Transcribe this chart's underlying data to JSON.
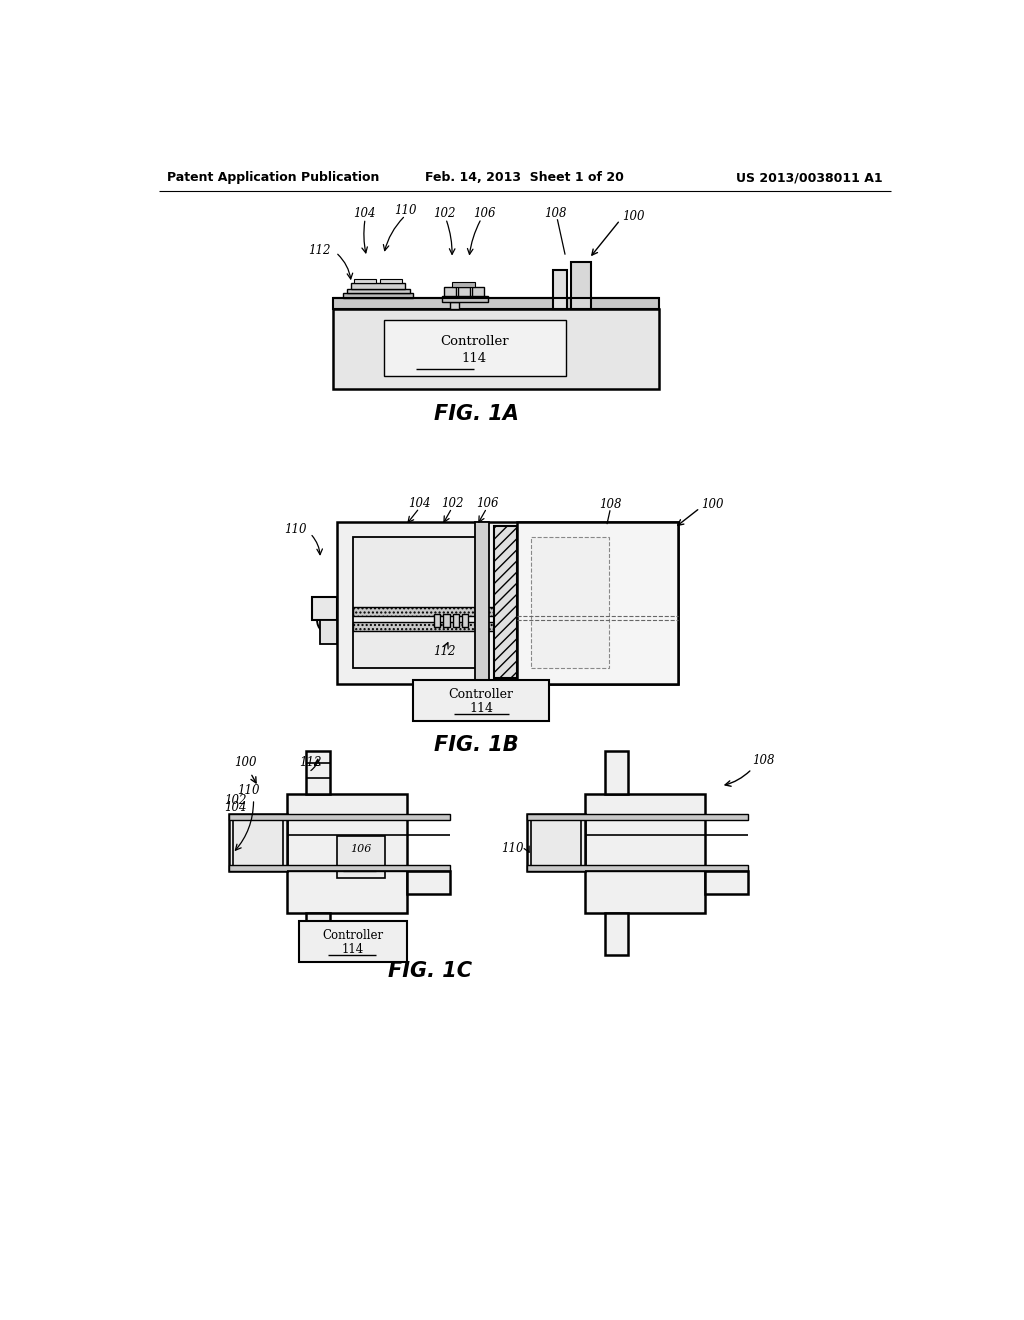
{
  "bg_color": "#ffffff",
  "header_left": "Patent Application Publication",
  "header_mid": "Feb. 14, 2013  Sheet 1 of 20",
  "header_right": "US 2013/0038011 A1",
  "fig1a_caption": "FIG. 1A",
  "fig1b_caption": "FIG. 1B",
  "fig1c_caption": "FIG. 1C"
}
